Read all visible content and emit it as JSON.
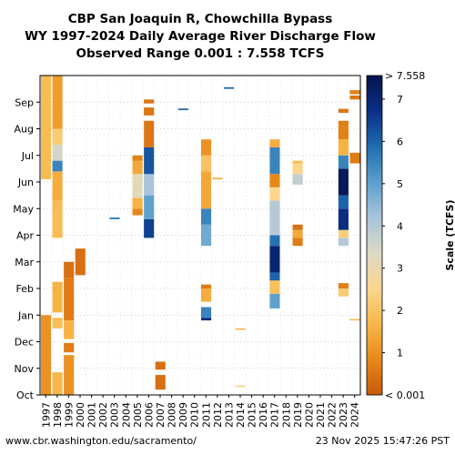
{
  "chart_data": {
    "type": "heatmap",
    "title_lines": [
      "CBP San Joaquin R, Chowchilla Bypass",
      "WY 1997-2024 Daily Average River Discharge Flow",
      "Observed Range 0.001 : 7.558 TCFS"
    ],
    "x_categories": [
      "1997",
      "1998",
      "1999",
      "2000",
      "2001",
      "2002",
      "2003",
      "2004",
      "2005",
      "2006",
      "2007",
      "2008",
      "2009",
      "2010",
      "2011",
      "2012",
      "2013",
      "2014",
      "2015",
      "2016",
      "2017",
      "2018",
      "2019",
      "2020",
      "2021",
      "2022",
      "2023",
      "2024"
    ],
    "y_months": [
      "Oct",
      "Nov",
      "Dec",
      "Jan",
      "Feb",
      "Mar",
      "Apr",
      "May",
      "Jun",
      "Jul",
      "Aug",
      "Sep"
    ],
    "colorbar": {
      "label": "Scale (TCFS)",
      "min": 0.001,
      "max": 7.558,
      "ticks": [
        1,
        2,
        3,
        4,
        5,
        6,
        7
      ],
      "top_label": "> 7.558",
      "bottom_label": "< 0.001",
      "stops": [
        "#c85a0a",
        "#e8891a",
        "#f7b748",
        "#fbd78e",
        "#dcd9c5",
        "#a9c4db",
        "#5a9fcc",
        "#1f6db0",
        "#0a2f86",
        "#05154e"
      ]
    },
    "flow_periods": [
      {
        "year": "1997",
        "start": 0.0,
        "end": 3.0,
        "value": 1.0
      },
      {
        "year": "1997",
        "start": 8.1,
        "end": 12.0,
        "value": 1.8
      },
      {
        "year": "1998",
        "start": 0.0,
        "end": 0.85,
        "value": 1.7
      },
      {
        "year": "1998",
        "start": 2.5,
        "end": 2.9,
        "value": 1.9
      },
      {
        "year": "1998",
        "start": 3.1,
        "end": 4.25,
        "value": 1.6
      },
      {
        "year": "1998",
        "start": 5.9,
        "end": 7.3,
        "value": 1.8
      },
      {
        "year": "1998",
        "start": 7.3,
        "end": 8.4,
        "value": 1.5
      },
      {
        "year": "1998",
        "start": 8.4,
        "end": 8.8,
        "value": 5.5
      },
      {
        "year": "1998",
        "start": 8.8,
        "end": 9.4,
        "value": 3.5
      },
      {
        "year": "1998",
        "start": 9.4,
        "end": 10.0,
        "value": 2.2
      },
      {
        "year": "1998",
        "start": 10.0,
        "end": 12.0,
        "value": 1.2
      },
      {
        "year": "1999",
        "start": 0.0,
        "end": 1.5,
        "value": 1.0
      },
      {
        "year": "1999",
        "start": 1.6,
        "end": 1.95,
        "value": 0.6
      },
      {
        "year": "1999",
        "start": 2.1,
        "end": 2.8,
        "value": 1.6
      },
      {
        "year": "1999",
        "start": 2.8,
        "end": 4.4,
        "value": 0.6
      },
      {
        "year": "1999",
        "start": 4.4,
        "end": 5.0,
        "value": 0.4
      },
      {
        "year": "2000",
        "start": 4.5,
        "end": 5.5,
        "value": 0.4
      },
      {
        "year": "2003",
        "start": 6.6,
        "end": 6.67,
        "value": 5.5
      },
      {
        "year": "2005",
        "start": 6.75,
        "end": 7.0,
        "value": 0.8
      },
      {
        "year": "2005",
        "start": 7.0,
        "end": 7.4,
        "value": 1.6
      },
      {
        "year": "2005",
        "start": 7.4,
        "end": 8.3,
        "value": 3.2
      },
      {
        "year": "2005",
        "start": 8.3,
        "end": 8.8,
        "value": 1.4
      },
      {
        "year": "2005",
        "start": 8.8,
        "end": 9.0,
        "value": 0.7
      },
      {
        "year": "2006",
        "start": 5.9,
        "end": 6.6,
        "value": 6.5
      },
      {
        "year": "2006",
        "start": 6.6,
        "end": 7.5,
        "value": 5.0
      },
      {
        "year": "2006",
        "start": 7.5,
        "end": 8.3,
        "value": 4.2
      },
      {
        "year": "2006",
        "start": 8.3,
        "end": 9.3,
        "value": 6.2
      },
      {
        "year": "2006",
        "start": 9.3,
        "end": 10.3,
        "value": 0.5
      },
      {
        "year": "2006",
        "start": 10.5,
        "end": 10.8,
        "value": 0.5
      },
      {
        "year": "2006",
        "start": 10.95,
        "end": 11.1,
        "value": 0.5
      },
      {
        "year": "2007",
        "start": 0.2,
        "end": 0.75,
        "value": 0.4
      },
      {
        "year": "2007",
        "start": 0.95,
        "end": 1.25,
        "value": 0.4
      },
      {
        "year": "2009",
        "start": 10.7,
        "end": 10.76,
        "value": 6.0
      },
      {
        "year": "2011",
        "start": 2.8,
        "end": 2.9,
        "value": 6.8
      },
      {
        "year": "2011",
        "start": 2.9,
        "end": 3.3,
        "value": 5.5
      },
      {
        "year": "2011",
        "start": 3.5,
        "end": 4.0,
        "value": 1.5
      },
      {
        "year": "2011",
        "start": 4.0,
        "end": 4.15,
        "value": 0.6
      },
      {
        "year": "2011",
        "start": 5.6,
        "end": 6.4,
        "value": 4.8
      },
      {
        "year": "2011",
        "start": 6.4,
        "end": 7.0,
        "value": 5.5
      },
      {
        "year": "2011",
        "start": 7.0,
        "end": 8.4,
        "value": 1.4
      },
      {
        "year": "2011",
        "start": 8.4,
        "end": 9.0,
        "value": 2.0
      },
      {
        "year": "2011",
        "start": 9.0,
        "end": 9.6,
        "value": 1.0
      },
      {
        "year": "2012",
        "start": 8.1,
        "end": 8.16,
        "value": 1.5
      },
      {
        "year": "2013",
        "start": 11.5,
        "end": 11.56,
        "value": 6.0
      },
      {
        "year": "2014",
        "start": 2.45,
        "end": 2.5,
        "value": 1.5
      },
      {
        "year": "2014",
        "start": 0.3,
        "end": 0.35,
        "value": 2.2
      },
      {
        "year": "2017",
        "start": 3.25,
        "end": 3.8,
        "value": 5.0
      },
      {
        "year": "2017",
        "start": 3.8,
        "end": 4.3,
        "value": 1.9
      },
      {
        "year": "2017",
        "start": 4.3,
        "end": 4.6,
        "value": 6.0
      },
      {
        "year": "2017",
        "start": 4.6,
        "end": 5.6,
        "value": 7.0
      },
      {
        "year": "2017",
        "start": 5.6,
        "end": 6.0,
        "value": 5.8
      },
      {
        "year": "2017",
        "start": 6.0,
        "end": 7.3,
        "value": 4.0
      },
      {
        "year": "2017",
        "start": 7.3,
        "end": 7.8,
        "value": 2.5
      },
      {
        "year": "2017",
        "start": 7.8,
        "end": 8.3,
        "value": 0.8
      },
      {
        "year": "2017",
        "start": 8.3,
        "end": 9.3,
        "value": 5.5
      },
      {
        "year": "2017",
        "start": 9.3,
        "end": 9.6,
        "value": 1.5
      },
      {
        "year": "2019",
        "start": 5.6,
        "end": 5.9,
        "value": 0.6
      },
      {
        "year": "2019",
        "start": 5.9,
        "end": 6.2,
        "value": 1.4
      },
      {
        "year": "2019",
        "start": 6.2,
        "end": 6.4,
        "value": 0.4
      },
      {
        "year": "2019",
        "start": 7.9,
        "end": 8.3,
        "value": 3.8
      },
      {
        "year": "2019",
        "start": 8.3,
        "end": 8.7,
        "value": 2.5
      },
      {
        "year": "2019",
        "start": 8.7,
        "end": 8.8,
        "value": 1.8
      },
      {
        "year": "2023",
        "start": 3.7,
        "end": 4.0,
        "value": 2.2
      },
      {
        "year": "2023",
        "start": 4.0,
        "end": 4.2,
        "value": 0.6
      },
      {
        "year": "2023",
        "start": 5.6,
        "end": 5.9,
        "value": 4.0
      },
      {
        "year": "2023",
        "start": 5.9,
        "end": 6.2,
        "value": 2.3
      },
      {
        "year": "2023",
        "start": 6.2,
        "end": 7.0,
        "value": 6.8
      },
      {
        "year": "2023",
        "start": 7.0,
        "end": 7.5,
        "value": 6.0
      },
      {
        "year": "2023",
        "start": 7.5,
        "end": 8.5,
        "value": 7.4
      },
      {
        "year": "2023",
        "start": 8.5,
        "end": 9.0,
        "value": 5.5
      },
      {
        "year": "2023",
        "start": 9.0,
        "end": 9.6,
        "value": 1.6
      },
      {
        "year": "2023",
        "start": 9.6,
        "end": 10.1,
        "value": 0.7
      },
      {
        "year": "2023",
        "start": 10.6,
        "end": 10.75,
        "value": 0.5
      },
      {
        "year": "2023",
        "start": 10.1,
        "end": 10.3,
        "value": 0.6
      },
      {
        "year": "2024",
        "start": 2.8,
        "end": 2.85,
        "value": 1.6
      },
      {
        "year": "2024",
        "start": 8.7,
        "end": 9.1,
        "value": 0.6
      },
      {
        "year": "2024",
        "start": 11.1,
        "end": 11.25,
        "value": 0.5
      },
      {
        "year": "2024",
        "start": 11.3,
        "end": 11.45,
        "value": 0.7
      }
    ]
  },
  "footer": {
    "source": "www.cbr.washington.edu/sacramento/",
    "timestamp": "23 Nov 2025 15:47:26 PST"
  }
}
